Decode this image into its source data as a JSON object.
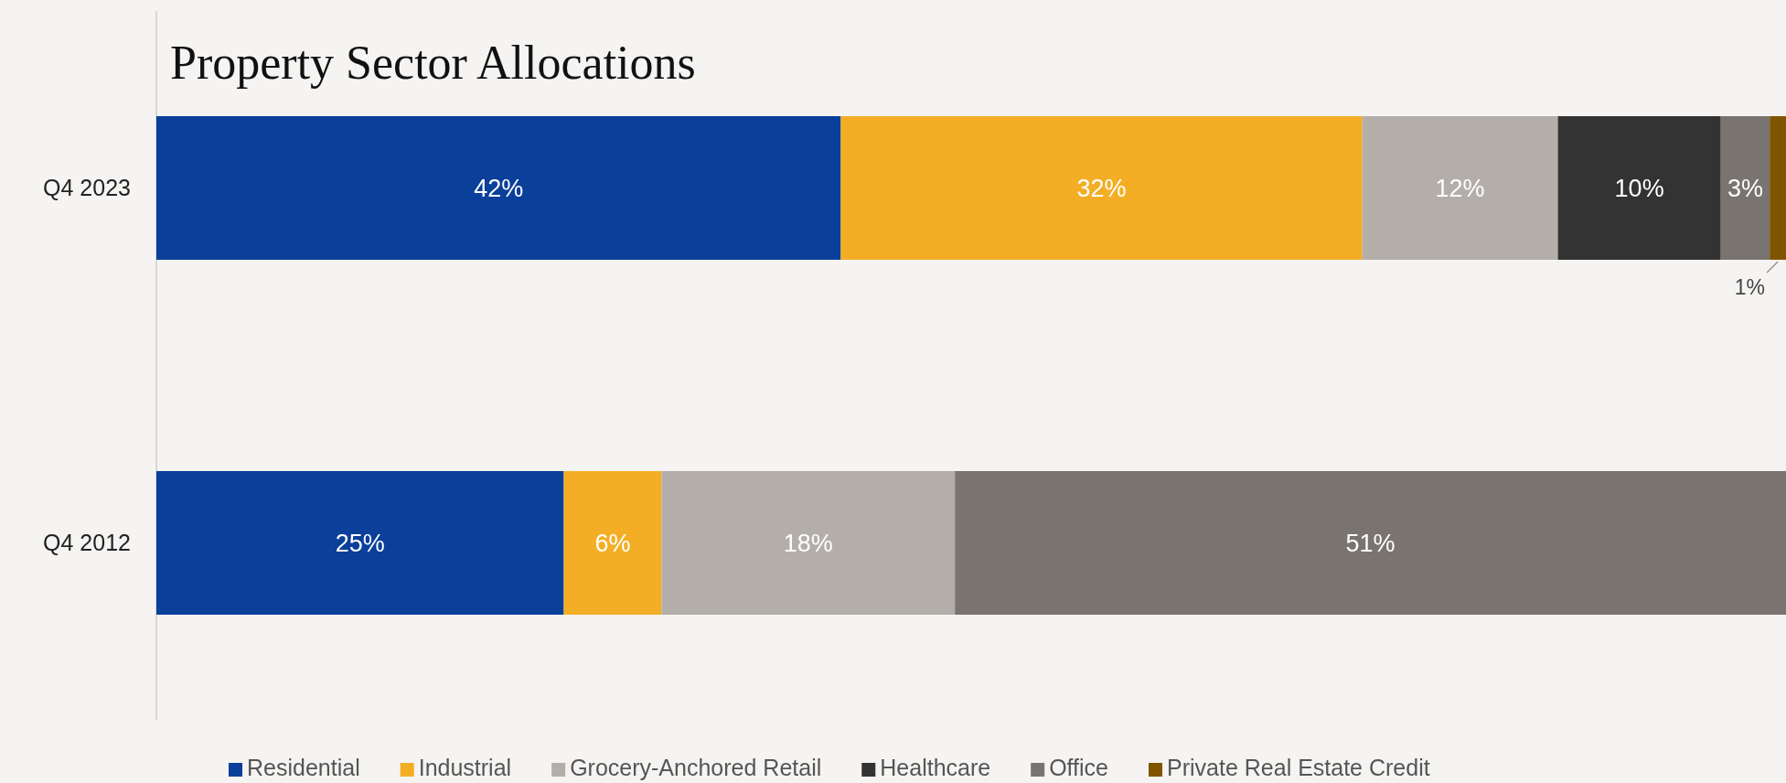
{
  "chart_data": {
    "type": "bar",
    "orientation": "horizontal",
    "stacked": true,
    "title": "Property Sector Allocations",
    "categories": [
      "Q4 2023",
      "Q4 2012"
    ],
    "series": [
      {
        "name": "Residential",
        "color": "#0a3f9a",
        "values": [
          42,
          25
        ],
        "value_labels": [
          "42%",
          "25%"
        ]
      },
      {
        "name": "Industrial",
        "color": "#f3ae25",
        "values": [
          32,
          6
        ],
        "value_labels": [
          "32%",
          "6%"
        ]
      },
      {
        "name": "Grocery-Anchored Retail",
        "color": "#b3aeaa",
        "values": [
          12,
          18
        ],
        "value_labels": [
          "12%",
          "18%"
        ]
      },
      {
        "name": "Healthcare",
        "color": "#333333",
        "values": [
          10,
          null
        ],
        "value_labels": [
          "10%",
          null
        ]
      },
      {
        "name": "Office",
        "color": "#797470",
        "values": [
          3,
          51
        ],
        "value_labels": [
          "3%",
          "51%"
        ]
      },
      {
        "name": "Private Real Estate Credit",
        "color": "#7f5500",
        "values": [
          1,
          null
        ],
        "value_labels": [
          "1%",
          null
        ]
      }
    ],
    "tick_labels": "y",
    "legend": "bottom"
  }
}
